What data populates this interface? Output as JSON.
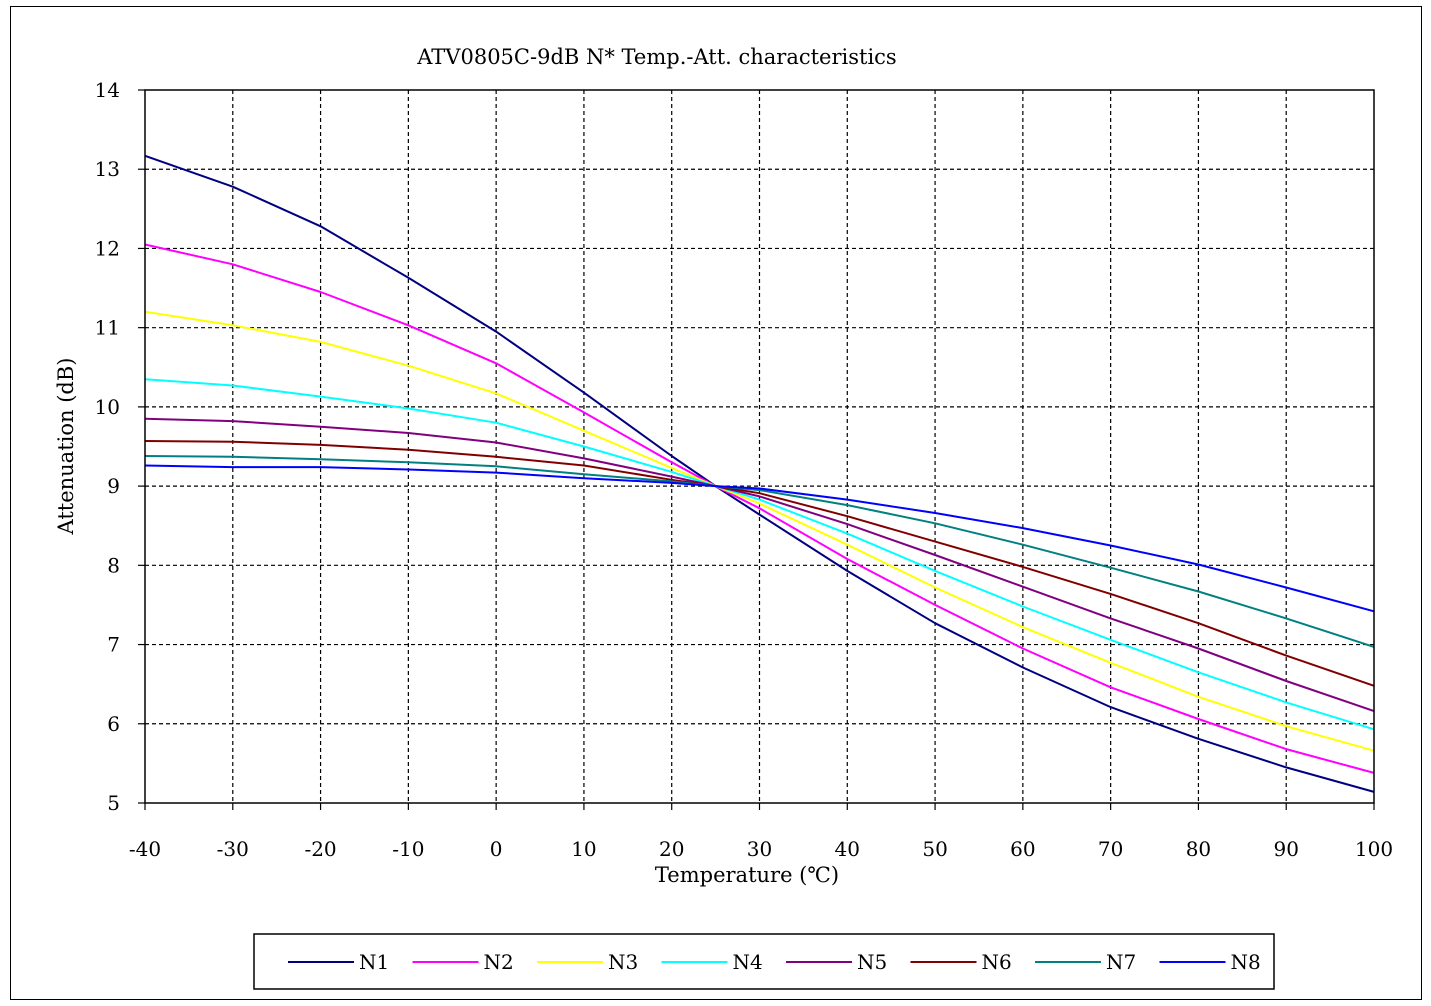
{
  "chart_data": {
    "type": "line",
    "title": "ATV0805C-9dB  N* Temp.-Att. characteristics",
    "xlabel": "Temperature (℃)",
    "ylabel": "Attenuation (dB)",
    "xlim": [
      -40,
      100
    ],
    "ylim": [
      5,
      14
    ],
    "xticks": [
      "-40",
      "-30",
      "-20",
      "-10",
      "0",
      "10",
      "20",
      "30",
      "40",
      "50",
      "60",
      "70",
      "80",
      "90",
      "100"
    ],
    "yticks": [
      "5",
      "6",
      "7",
      "8",
      "9",
      "10",
      "11",
      "12",
      "13",
      "14"
    ],
    "grid": true,
    "legend_position": "bottom",
    "x": [
      -40,
      -30,
      -20,
      -10,
      0,
      10,
      20,
      25,
      30,
      40,
      50,
      60,
      70,
      80,
      90,
      100
    ],
    "series": [
      {
        "name": "N1",
        "color": "#000080",
        "values": [
          13.17,
          12.78,
          12.28,
          11.63,
          10.95,
          10.18,
          9.38,
          9.0,
          8.64,
          7.93,
          7.27,
          6.71,
          6.21,
          5.81,
          5.45,
          5.14
        ]
      },
      {
        "name": "N2",
        "color": "#ff00ff",
        "values": [
          12.05,
          11.8,
          11.45,
          11.03,
          10.55,
          9.93,
          9.3,
          9.0,
          8.72,
          8.08,
          7.5,
          6.95,
          6.46,
          6.06,
          5.68,
          5.38
        ]
      },
      {
        "name": "N3",
        "color": "#ffff00",
        "values": [
          11.2,
          11.03,
          10.82,
          10.52,
          10.17,
          9.7,
          9.23,
          9.0,
          8.78,
          8.26,
          7.72,
          7.22,
          6.77,
          6.34,
          5.97,
          5.66
        ]
      },
      {
        "name": "N4",
        "color": "#00ffff",
        "values": [
          10.35,
          10.27,
          10.13,
          9.98,
          9.8,
          9.5,
          9.18,
          9.0,
          8.83,
          8.4,
          7.93,
          7.48,
          7.06,
          6.65,
          6.27,
          5.93
        ]
      },
      {
        "name": "N5",
        "color": "#800080",
        "values": [
          9.85,
          9.82,
          9.75,
          9.67,
          9.55,
          9.35,
          9.12,
          9.0,
          8.87,
          8.52,
          8.13,
          7.73,
          7.33,
          6.95,
          6.54,
          6.16
        ]
      },
      {
        "name": "N6",
        "color": "#800000",
        "values": [
          9.57,
          9.56,
          9.52,
          9.46,
          9.37,
          9.26,
          9.08,
          9.0,
          8.91,
          8.62,
          8.3,
          7.98,
          7.64,
          7.27,
          6.86,
          6.48
        ]
      },
      {
        "name": "N7",
        "color": "#008080",
        "values": [
          9.38,
          9.37,
          9.34,
          9.3,
          9.25,
          9.15,
          9.06,
          9.0,
          8.95,
          8.76,
          8.53,
          8.26,
          7.97,
          7.67,
          7.33,
          6.97
        ]
      },
      {
        "name": "N8",
        "color": "#0000ff",
        "values": [
          9.26,
          9.24,
          9.24,
          9.21,
          9.17,
          9.1,
          9.04,
          9.0,
          8.97,
          8.83,
          8.66,
          8.47,
          8.25,
          8.01,
          7.72,
          7.42
        ]
      }
    ]
  }
}
